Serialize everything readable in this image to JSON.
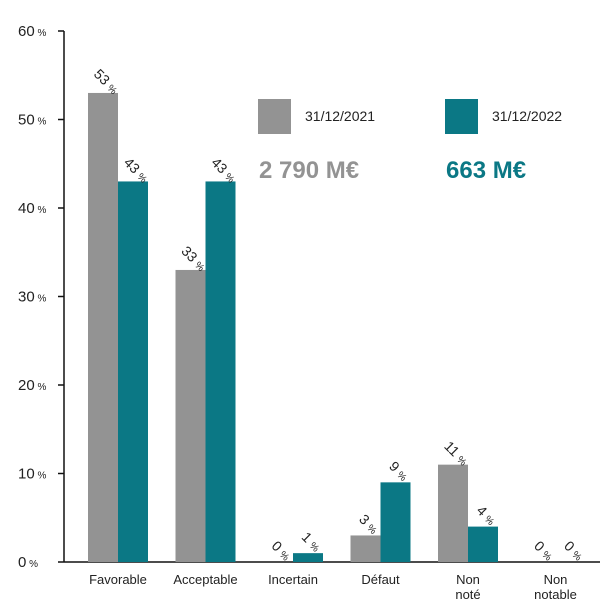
{
  "chart_data": {
    "type": "bar",
    "categories": [
      "Favorable",
      "Acceptable",
      "Incertain",
      "Défaut",
      "Non noté",
      "Non notable"
    ],
    "category_lines": [
      [
        "Favorable"
      ],
      [
        "Acceptable"
      ],
      [
        "Incertain"
      ],
      [
        "Défaut"
      ],
      [
        "Non",
        "noté"
      ],
      [
        "Non",
        "notable"
      ]
    ],
    "series": [
      {
        "name": "31/12/2021",
        "values": [
          53,
          33,
          0,
          3,
          11,
          0
        ],
        "color": "#939393",
        "total": "2 790 M€"
      },
      {
        "name": "31/12/2022",
        "values": [
          43,
          43,
          1,
          9,
          4,
          0
        ],
        "color": "#0b7885",
        "total": "663 M€"
      }
    ],
    "unit": "%",
    "ylim": [
      0,
      60
    ],
    "yticks": [
      0,
      10,
      20,
      30,
      40,
      50,
      60
    ],
    "grid": false,
    "legend_position": "top-right",
    "title": "",
    "xlabel": "",
    "ylabel": ""
  }
}
